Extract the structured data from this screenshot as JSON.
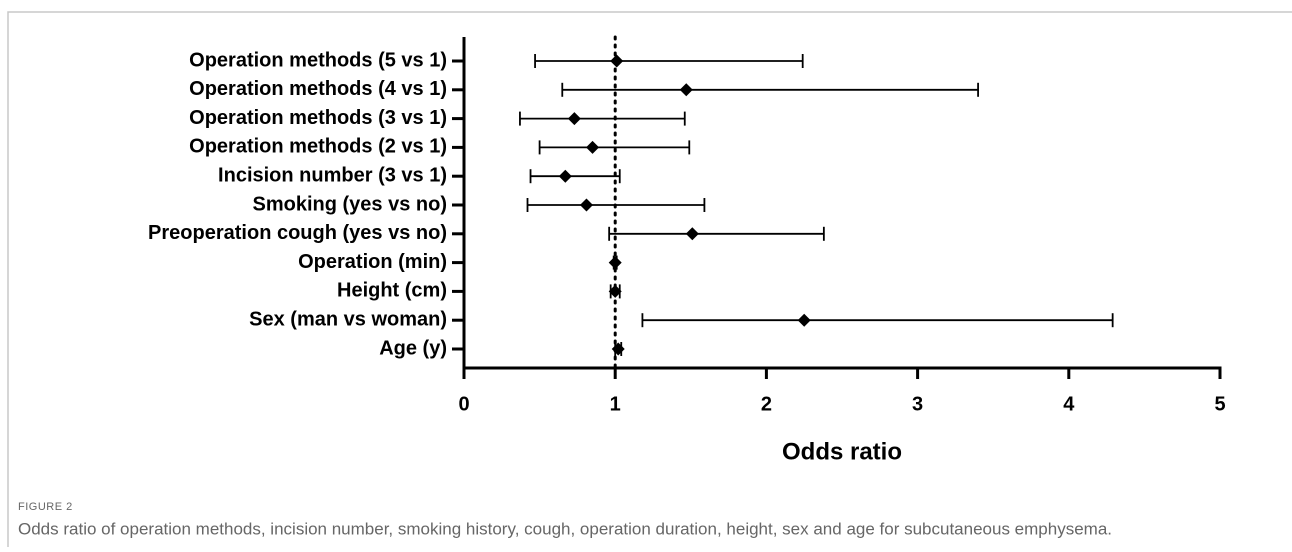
{
  "chart_data": {
    "type": "forest",
    "categories": [
      "Operation methods (5 vs 1)",
      "Operation methods (4 vs 1)",
      "Operation methods (3 vs 1)",
      "Operation methods (2 vs 1)",
      "Incision number (3 vs 1)",
      "Smoking (yes vs no)",
      "Preoperation cough (yes vs no)",
      "Operation (min)",
      "Height (cm)",
      "Sex (man vs woman)",
      "Age (y)"
    ],
    "values": [
      1.01,
      1.47,
      0.73,
      0.85,
      0.67,
      0.81,
      1.51,
      1.0,
      1.0,
      2.25,
      1.02
    ],
    "lower": [
      0.47,
      0.65,
      0.37,
      0.5,
      0.44,
      0.42,
      0.96,
      0.99,
      0.97,
      1.18,
      1.0
    ],
    "upper": [
      2.24,
      3.4,
      1.46,
      1.49,
      1.03,
      1.59,
      2.38,
      1.01,
      1.03,
      4.29,
      1.04
    ],
    "reference_line": 1,
    "xlim": [
      0,
      5
    ],
    "xticks": [
      0,
      1,
      2,
      3,
      4,
      5
    ],
    "x_label": "Odds ratio",
    "color": "#000000",
    "figure_label": "FIGURE 2",
    "caption": "Odds ratio of operation methods, incision number, smoking history, cough, operation duration, height, sex and age for subcutaneous emphysema."
  }
}
